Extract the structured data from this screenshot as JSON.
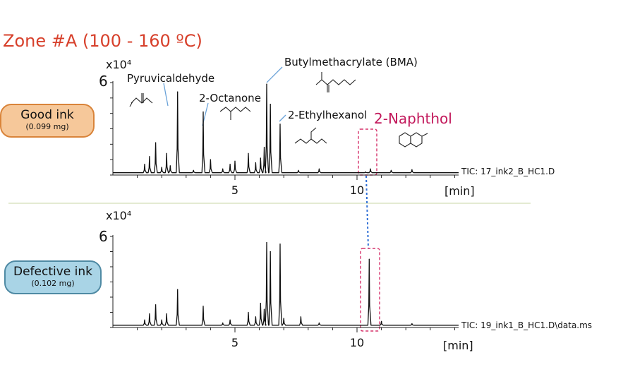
{
  "zone_title": "Zone #A (100 - 160  ºC)",
  "top_panel": {
    "badge_main": "Good ink",
    "badge_sub": "(0.099 mg)",
    "scale": "x10⁴",
    "ymax_label": "6",
    "tic_label": "TIC: 17_ink2_B_HC1.D",
    "x_unit": "[min]",
    "peak_labels": {
      "pyruvicaldehyde": "Pyruvicaldehyde",
      "octanone": "2-Octanone",
      "bma": "Butylmethacrylate (BMA)",
      "ethylhexanol": "2-Ethylhexanol",
      "naphthol": "2-Naphthol"
    }
  },
  "bottom_panel": {
    "badge_main": "Defective ink",
    "badge_sub": "(0.102 mg)",
    "scale": "x10⁴",
    "ymax_label": "6",
    "tic_label": "TIC: 19_ink1_B_HC1.D\\data.ms",
    "x_unit": "[min]"
  },
  "chart_data": [
    {
      "type": "line",
      "series": [
        {
          "name": "TIC: 17_ink2_B_HC1.D",
          "x_range": [
            0,
            14.5
          ],
          "baseline": 0.15,
          "peaks": [
            {
              "x": 1.3,
              "y": 0.7
            },
            {
              "x": 1.5,
              "y": 1.2
            },
            {
              "x": 1.75,
              "y": 2.1
            },
            {
              "x": 2.0,
              "y": 0.5
            },
            {
              "x": 2.2,
              "y": 1.4
            },
            {
              "x": 2.35,
              "y": 0.6
            },
            {
              "x": 2.65,
              "y": 5.4
            },
            {
              "x": 3.3,
              "y": 0.3
            },
            {
              "x": 3.7,
              "y": 4.1
            },
            {
              "x": 4.0,
              "y": 1.0
            },
            {
              "x": 4.5,
              "y": 0.4
            },
            {
              "x": 4.8,
              "y": 0.7
            },
            {
              "x": 5.0,
              "y": 0.9
            },
            {
              "x": 5.55,
              "y": 1.4
            },
            {
              "x": 5.85,
              "y": 0.8
            },
            {
              "x": 6.05,
              "y": 1.1
            },
            {
              "x": 6.2,
              "y": 1.8
            },
            {
              "x": 6.3,
              "y": 5.9
            },
            {
              "x": 6.45,
              "y": 4.6
            },
            {
              "x": 6.85,
              "y": 3.3
            },
            {
              "x": 7.6,
              "y": 0.3
            },
            {
              "x": 8.45,
              "y": 0.4
            },
            {
              "x": 10.35,
              "y": 0.2
            },
            {
              "x": 10.55,
              "y": 0.4
            },
            {
              "x": 11.4,
              "y": 0.3
            },
            {
              "x": 12.25,
              "y": 0.35
            }
          ]
        }
      ],
      "xticks": [
        "5",
        "10"
      ],
      "ylim": [
        0,
        6
      ],
      "scale_label": "x10⁴",
      "xlabel": "[min]"
    },
    {
      "type": "line",
      "series": [
        {
          "name": "TIC: 19_ink1_B_HC1.D\\data.ms",
          "x_range": [
            0,
            14.5
          ],
          "baseline": 0.15,
          "peaks": [
            {
              "x": 1.3,
              "y": 0.5
            },
            {
              "x": 1.5,
              "y": 0.9
            },
            {
              "x": 1.75,
              "y": 1.5
            },
            {
              "x": 2.0,
              "y": 0.5
            },
            {
              "x": 2.2,
              "y": 0.9
            },
            {
              "x": 2.65,
              "y": 2.5
            },
            {
              "x": 3.7,
              "y": 1.4
            },
            {
              "x": 4.5,
              "y": 0.3
            },
            {
              "x": 4.8,
              "y": 0.5
            },
            {
              "x": 5.55,
              "y": 1.0
            },
            {
              "x": 5.85,
              "y": 0.7
            },
            {
              "x": 6.05,
              "y": 1.6
            },
            {
              "x": 6.2,
              "y": 1.2
            },
            {
              "x": 6.3,
              "y": 5.6
            },
            {
              "x": 6.45,
              "y": 5.0
            },
            {
              "x": 6.85,
              "y": 5.5
            },
            {
              "x": 7.0,
              "y": 0.6
            },
            {
              "x": 7.7,
              "y": 0.7
            },
            {
              "x": 8.45,
              "y": 0.3
            },
            {
              "x": 10.5,
              "y": 4.5
            },
            {
              "x": 11.0,
              "y": 0.4
            },
            {
              "x": 12.25,
              "y": 0.25
            }
          ]
        }
      ],
      "xticks": [
        "5",
        "10"
      ],
      "ylim": [
        0,
        6
      ],
      "scale_label": "x10⁴",
      "xlabel": "[min]"
    }
  ]
}
